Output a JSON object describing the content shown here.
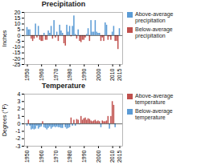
{
  "chart_data": [
    {
      "type": "bar",
      "title": "Precipitation",
      "ylabel": "Inches",
      "x": [
        1950,
        1951,
        1952,
        1953,
        1954,
        1955,
        1956,
        1957,
        1958,
        1959,
        1960,
        1961,
        1962,
        1963,
        1964,
        1965,
        1966,
        1967,
        1968,
        1969,
        1970,
        1971,
        1972,
        1973,
        1974,
        1975,
        1976,
        1977,
        1978,
        1979,
        1980,
        1981,
        1982,
        1983,
        1984,
        1985,
        1986,
        1987,
        1988,
        1989,
        1990,
        1991,
        1992,
        1993,
        1994,
        1995,
        1996,
        1997,
        1998,
        1999,
        2000,
        2001,
        2002,
        2003,
        2004,
        2005,
        2006,
        2007,
        2008,
        2009,
        2010,
        2011,
        2012,
        2013,
        2014,
        2015
      ],
      "series": [
        {
          "name": "Above-average precipitation",
          "color": "#5b9bd5",
          "values": [
            7,
            5,
            5,
            null,
            null,
            null,
            10,
            null,
            8,
            null,
            null,
            null,
            2,
            null,
            null,
            4,
            2,
            8,
            null,
            13,
            null,
            3,
            null,
            9,
            4,
            2,
            null,
            null,
            9,
            3,
            8,
            null,
            8,
            17,
            1,
            null,
            5,
            null,
            null,
            null,
            null,
            null,
            1,
            6,
            null,
            13,
            3,
            3,
            13,
            3,
            2,
            2,
            null,
            null,
            null,
            11,
            9,
            null,
            null,
            null,
            3,
            8,
            null,
            null,
            null,
            6
          ]
        },
        {
          "name": "Below-average precipitation",
          "color": "#c0504d",
          "values": [
            null,
            null,
            null,
            -3,
            -5,
            -3,
            null,
            -2,
            null,
            -4,
            -5,
            -5,
            null,
            -4,
            -4,
            null,
            null,
            null,
            -3,
            null,
            -2,
            null,
            -5,
            null,
            null,
            null,
            -7,
            -9,
            null,
            null,
            null,
            -1,
            null,
            null,
            null,
            -3,
            null,
            -5,
            -6,
            -4,
            -4,
            -2,
            null,
            null,
            -5,
            null,
            null,
            null,
            null,
            null,
            null,
            null,
            -5,
            -2,
            -5,
            null,
            null,
            -4,
            -1,
            -4,
            null,
            null,
            -5,
            -5,
            -12,
            null
          ]
        }
      ],
      "xlim": [
        1948,
        2017
      ],
      "xticks": [
        1950,
        1960,
        1970,
        1980,
        1990,
        2000,
        2010,
        2015
      ],
      "ylim": [
        -25,
        20
      ],
      "yticks": [
        20,
        15,
        10,
        5,
        0,
        -5,
        -10,
        -15,
        -20,
        -25
      ],
      "grid": false,
      "legend": "right"
    },
    {
      "type": "bar",
      "title": "Temperature",
      "ylabel": "Degrees (°F)",
      "x": [
        1950,
        1951,
        1952,
        1953,
        1954,
        1955,
        1956,
        1957,
        1958,
        1959,
        1960,
        1961,
        1962,
        1963,
        1964,
        1965,
        1966,
        1967,
        1968,
        1969,
        1970,
        1971,
        1972,
        1973,
        1974,
        1975,
        1976,
        1977,
        1978,
        1979,
        1980,
        1981,
        1982,
        1983,
        1984,
        1985,
        1986,
        1987,
        1988,
        1989,
        1990,
        1991,
        1992,
        1993,
        1994,
        1995,
        1996,
        1997,
        1998,
        1999,
        2000,
        2001,
        2002,
        2003,
        2004,
        2005,
        2006,
        2007,
        2008,
        2009,
        2010,
        2011,
        2012,
        2013,
        2014,
        2015
      ],
      "series": [
        {
          "name": "Above-average temperature",
          "color": "#c0504d",
          "values": [
            null,
            0.5,
            null,
            null,
            null,
            null,
            null,
            null,
            null,
            null,
            null,
            0.3,
            null,
            null,
            null,
            null,
            null,
            null,
            null,
            null,
            null,
            null,
            null,
            null,
            null,
            null,
            null,
            null,
            null,
            null,
            null,
            0.8,
            null,
            0.5,
            null,
            0.6,
            0.5,
            null,
            1.0,
            0.5,
            0.7,
            0.8,
            0.5,
            0.7,
            0.6,
            0.4,
            0.3,
            0.4,
            0.5,
            0.3,
            0.4,
            0.3,
            null,
            0.4,
            0.3,
            0.3,
            0.4,
            1.0,
            null,
            1.0,
            3.0,
            2.5,
            null,
            0.0,
            0.0,
            0.0
          ]
        },
        {
          "name": "Below-average temperature",
          "color": "#5b9bd5",
          "values": [
            -0.3,
            null,
            -0.3,
            -0.8,
            -0.7,
            -0.8,
            -0.7,
            -0.3,
            -0.7,
            -0.5,
            -0.4,
            null,
            -0.5,
            -0.6,
            -0.8,
            -0.6,
            -0.4,
            -0.7,
            -0.5,
            -0.4,
            -0.5,
            -0.4,
            -0.5,
            -0.5,
            -0.6,
            -0.6,
            -0.1,
            -0.5,
            -0.7,
            -0.6,
            -0.5,
            null,
            -0.3,
            null,
            -0.3,
            null,
            null,
            -0.1,
            null,
            null,
            null,
            null,
            null,
            null,
            null,
            null,
            null,
            null,
            null,
            null,
            null,
            null,
            -0.5,
            null,
            null,
            null,
            null,
            null,
            -0.7,
            null,
            null,
            null,
            -0.5,
            null,
            null,
            null
          ]
        }
      ],
      "xlim": [
        1948,
        2017
      ],
      "xticks": [
        1950,
        1960,
        1970,
        1980,
        1990,
        2000,
        2010,
        2015
      ],
      "ylim": [
        -3,
        4
      ],
      "yticks": [
        4,
        3,
        2,
        1,
        0,
        -1,
        -2,
        -3
      ],
      "grid": false,
      "legend": "right"
    }
  ]
}
